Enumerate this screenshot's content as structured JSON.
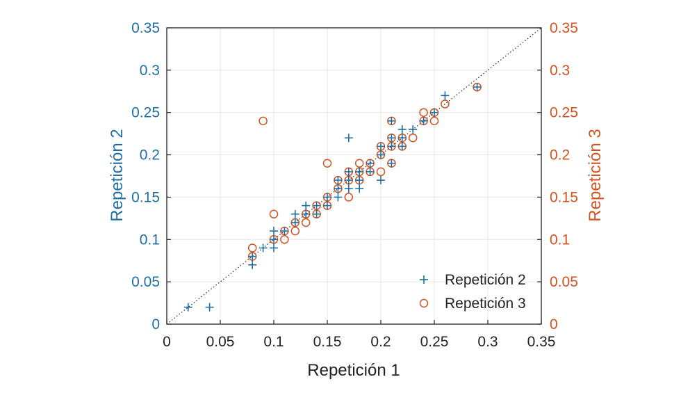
{
  "colors": {
    "series1": "#1f6fa5",
    "series2": "#d2531f",
    "axis": "#222222",
    "grid": "#e6e6e6",
    "diagonal": "#333333"
  },
  "chart_data": {
    "type": "scatter",
    "title": "",
    "xlabel": "Repetición 1",
    "ylabel_left": "Repetición 2",
    "ylabel_right": "Repetición 3",
    "xlim": [
      0,
      0.35
    ],
    "ylim": [
      0,
      0.35
    ],
    "grid": true,
    "legend_position": "bottom-right",
    "reference_line": "y = x (dotted)",
    "x_ticks": [
      "0",
      "0.05",
      "0.1",
      "0.15",
      "0.2",
      "0.25",
      "0.3",
      "0.35"
    ],
    "y_ticks": [
      "0",
      "0.05",
      "0.1",
      "0.15",
      "0.2",
      "0.25",
      "0.3",
      "0.35"
    ],
    "series": [
      {
        "name": "Repetición 2",
        "marker": "plus",
        "axis": "left",
        "points": [
          [
            0.02,
            0.02
          ],
          [
            0.04,
            0.02
          ],
          [
            0.08,
            0.07
          ],
          [
            0.08,
            0.08
          ],
          [
            0.09,
            0.09
          ],
          [
            0.1,
            0.09
          ],
          [
            0.1,
            0.1
          ],
          [
            0.1,
            0.11
          ],
          [
            0.11,
            0.11
          ],
          [
            0.12,
            0.12
          ],
          [
            0.12,
            0.13
          ],
          [
            0.13,
            0.13
          ],
          [
            0.13,
            0.14
          ],
          [
            0.14,
            0.13
          ],
          [
            0.14,
            0.14
          ],
          [
            0.15,
            0.14
          ],
          [
            0.15,
            0.15
          ],
          [
            0.16,
            0.15
          ],
          [
            0.16,
            0.16
          ],
          [
            0.16,
            0.17
          ],
          [
            0.17,
            0.16
          ],
          [
            0.17,
            0.17
          ],
          [
            0.17,
            0.18
          ],
          [
            0.17,
            0.22
          ],
          [
            0.18,
            0.16
          ],
          [
            0.18,
            0.17
          ],
          [
            0.18,
            0.18
          ],
          [
            0.19,
            0.18
          ],
          [
            0.19,
            0.19
          ],
          [
            0.2,
            0.17
          ],
          [
            0.2,
            0.2
          ],
          [
            0.2,
            0.21
          ],
          [
            0.21,
            0.19
          ],
          [
            0.21,
            0.21
          ],
          [
            0.21,
            0.22
          ],
          [
            0.21,
            0.24
          ],
          [
            0.22,
            0.21
          ],
          [
            0.22,
            0.22
          ],
          [
            0.22,
            0.23
          ],
          [
            0.23,
            0.23
          ],
          [
            0.24,
            0.24
          ],
          [
            0.25,
            0.25
          ],
          [
            0.26,
            0.27
          ],
          [
            0.29,
            0.28
          ]
        ]
      },
      {
        "name": "Repetición 3",
        "marker": "circle",
        "axis": "right",
        "points": [
          [
            0.08,
            0.08
          ],
          [
            0.08,
            0.09
          ],
          [
            0.09,
            0.24
          ],
          [
            0.1,
            0.1
          ],
          [
            0.1,
            0.13
          ],
          [
            0.11,
            0.1
          ],
          [
            0.11,
            0.11
          ],
          [
            0.12,
            0.11
          ],
          [
            0.12,
            0.12
          ],
          [
            0.13,
            0.12
          ],
          [
            0.13,
            0.13
          ],
          [
            0.14,
            0.13
          ],
          [
            0.14,
            0.14
          ],
          [
            0.15,
            0.14
          ],
          [
            0.15,
            0.15
          ],
          [
            0.15,
            0.19
          ],
          [
            0.16,
            0.16
          ],
          [
            0.16,
            0.17
          ],
          [
            0.17,
            0.15
          ],
          [
            0.17,
            0.17
          ],
          [
            0.17,
            0.18
          ],
          [
            0.18,
            0.17
          ],
          [
            0.18,
            0.18
          ],
          [
            0.18,
            0.19
          ],
          [
            0.19,
            0.18
          ],
          [
            0.19,
            0.19
          ],
          [
            0.2,
            0.18
          ],
          [
            0.2,
            0.2
          ],
          [
            0.2,
            0.21
          ],
          [
            0.21,
            0.19
          ],
          [
            0.21,
            0.21
          ],
          [
            0.21,
            0.22
          ],
          [
            0.21,
            0.24
          ],
          [
            0.22,
            0.21
          ],
          [
            0.22,
            0.22
          ],
          [
            0.23,
            0.22
          ],
          [
            0.24,
            0.24
          ],
          [
            0.24,
            0.25
          ],
          [
            0.25,
            0.24
          ],
          [
            0.25,
            0.25
          ],
          [
            0.26,
            0.26
          ],
          [
            0.29,
            0.28
          ]
        ]
      }
    ]
  }
}
